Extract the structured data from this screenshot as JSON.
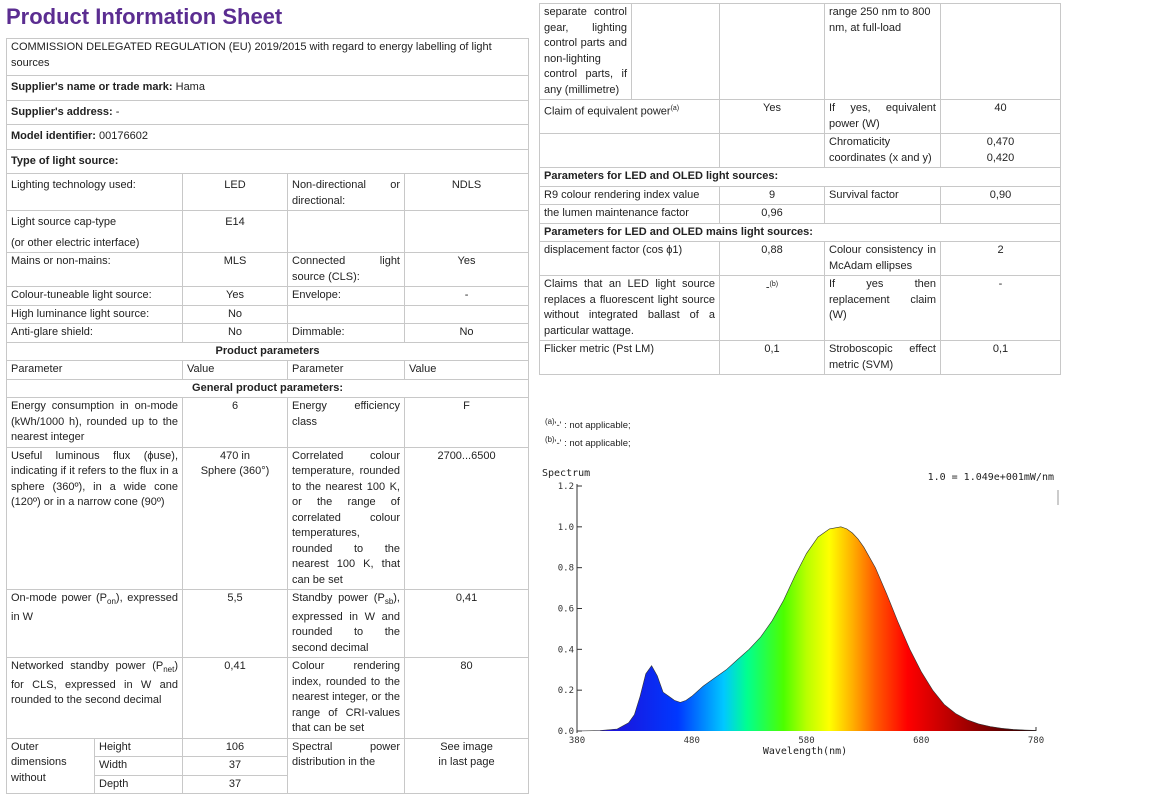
{
  "title": "Product Information Sheet",
  "regulation": "COMMISSION DELEGATED REGULATION (EU) 2019/2015 with regard to energy labelling of light sources",
  "supplier_name_label": "Supplier's name or trade mark:",
  "supplier_name": "Hama",
  "supplier_address_label": "Supplier's address:",
  "supplier_address": "-",
  "model_label": "Model identifier:",
  "model": "00176602",
  "type_label": "Type of light source:",
  "lighting_tech_label": "Lighting technology used:",
  "lighting_tech": "LED",
  "nondir_label": "Non-directional or directional:",
  "nondir": "NDLS",
  "cap_label1": "Light source cap-type",
  "cap_label2": "(or other electric interface)",
  "cap": "E14",
  "mains_label": "Mains or non-mains:",
  "mains": "MLS",
  "cls_label": "Connected light source (CLS):",
  "cls": "Yes",
  "colour_tune_label": "Colour-tuneable light source:",
  "colour_tune": "Yes",
  "envelope_label": "Envelope:",
  "envelope": "-",
  "high_lum_label": "High luminance light source:",
  "high_lum": "No",
  "antiglare_label": "Anti-glare shield:",
  "antiglare": "No",
  "dimmable_label": "Dimmable:",
  "dimmable": "No",
  "product_params": "Product parameters",
  "hdr_param": "Parameter",
  "hdr_value": "Value",
  "general_params": "General product parameters:",
  "energy_label": "Energy consumption in on-mode (kWh/1000 h), rounded up to the nearest integer",
  "energy": "6",
  "eff_label": "Energy efficiency class",
  "eff": "F",
  "flux_label": "Useful luminous flux (ϕuse), indicating if it refers to the flux in a sphere (360º), in a wide cone (120º) or in a narrow cone (90º)",
  "flux1": "470 in",
  "flux2": "Sphere (360°)",
  "cct_label": "Correlated colour temperature, rounded to the nearest 100 K, or the range of correlated colour temperatures, rounded to the nearest 100 K, that can be set",
  "cct": "2700...6500",
  "pon_label_a": "On-mode power (P",
  "pon_sub": "on",
  "pon_label_b": "), expressed in W",
  "pon": "5,5",
  "psb_label_a": "Standby power (P",
  "psb_sub": "sb",
  "psb_label_b": "), expressed in W and rounded to the second decimal",
  "psb": "0,41",
  "pnet_label_a": "Networked standby power (P",
  "pnet_sub": "net",
  "pnet_label_b": ") for CLS, expressed in W and rounded to the second decimal",
  "pnet": "0,41",
  "cri_label": "Colour rendering index, rounded to the nearest integer, or the range of CRI-values that can be set",
  "cri": "80",
  "outer_label": "Outer dimensions without",
  "height_label": "Height",
  "height": "106",
  "width_label": "Width",
  "width": "37",
  "depth_label": "Depth",
  "depth": "37",
  "spd_label": "Spectral power distribution in the",
  "spd1": "See image",
  "spd2": "in last page",
  "sep_label": "separate control gear, lighting control parts and non-lighting control parts, if any (millimetre)",
  "range_label": "range 250 nm to 800 nm, at full-load",
  "equiv_label": "Claim of equivalent power",
  "equiv_sup": "(a)",
  "equiv": "Yes",
  "equiv_w_label": "If yes, equivalent power (W)",
  "equiv_w": "40",
  "chroma_label": "Chromaticity coordinates (x and y)",
  "chroma_x": "0,470",
  "chroma_y": "0,420",
  "led_params": "Parameters for LED and OLED light sources:",
  "r9_label": "R9 colour rendering index value",
  "r9": "9",
  "survival_label": "Survival factor",
  "survival": "0,90",
  "lumen_label": "the lumen maintenance factor",
  "lumen": "0,96",
  "led_mains_params": "Parameters for LED and OLED mains light sources:",
  "disp_label": "displacement factor (cos ϕ1)",
  "disp": "0,88",
  "consist_label": "Colour consistency in McAdam ellipses",
  "consist": "2",
  "claims_label": "Claims that an LED light source replaces a fluorescent light source without integrated ballast of a particular wattage.",
  "claims": "-",
  "claims_sup": "(b)",
  "replace_label": "If yes then replacement claim (W)",
  "replace": "-",
  "flicker_label": "Flicker metric (Pst LM)",
  "flicker": "0,1",
  "strobo_label": "Stroboscopic effect metric (SVM)",
  "strobo": "0,1",
  "fn_a_sup": "(a)",
  "fn_a": "'-' : not applicable;",
  "fn_b_sup": "(b)",
  "fn_b": "'-' : not applicable;",
  "chart_data": {
    "type": "area",
    "title": "Spectrum",
    "scale_note": "1.0 = 1.049e+001mW/nm",
    "xlabel": "Wavelength(nm)",
    "ylabel": "",
    "xlim": [
      380,
      780
    ],
    "ylim": [
      0,
      1.2
    ],
    "xticks": [
      380,
      480,
      580,
      680,
      780
    ],
    "yticks": [
      "0.0",
      "0.2",
      "0.4",
      "0.6",
      "0.8",
      "1.0",
      "1.2"
    ],
    "x": [
      380,
      400,
      415,
      425,
      430,
      435,
      440,
      445,
      450,
      455,
      460,
      465,
      470,
      475,
      480,
      490,
      500,
      510,
      520,
      530,
      540,
      550,
      560,
      570,
      580,
      590,
      600,
      610,
      615,
      620,
      625,
      630,
      640,
      650,
      660,
      670,
      680,
      690,
      700,
      710,
      720,
      730,
      740,
      750,
      760,
      770,
      780
    ],
    "values": [
      0.0,
      0.002,
      0.01,
      0.04,
      0.08,
      0.17,
      0.28,
      0.32,
      0.27,
      0.19,
      0.17,
      0.15,
      0.14,
      0.15,
      0.17,
      0.22,
      0.26,
      0.3,
      0.35,
      0.4,
      0.46,
      0.54,
      0.64,
      0.76,
      0.87,
      0.95,
      0.99,
      1.0,
      0.99,
      0.97,
      0.94,
      0.9,
      0.8,
      0.67,
      0.53,
      0.4,
      0.29,
      0.2,
      0.13,
      0.085,
      0.055,
      0.035,
      0.022,
      0.013,
      0.008,
      0.005,
      0.003
    ]
  }
}
